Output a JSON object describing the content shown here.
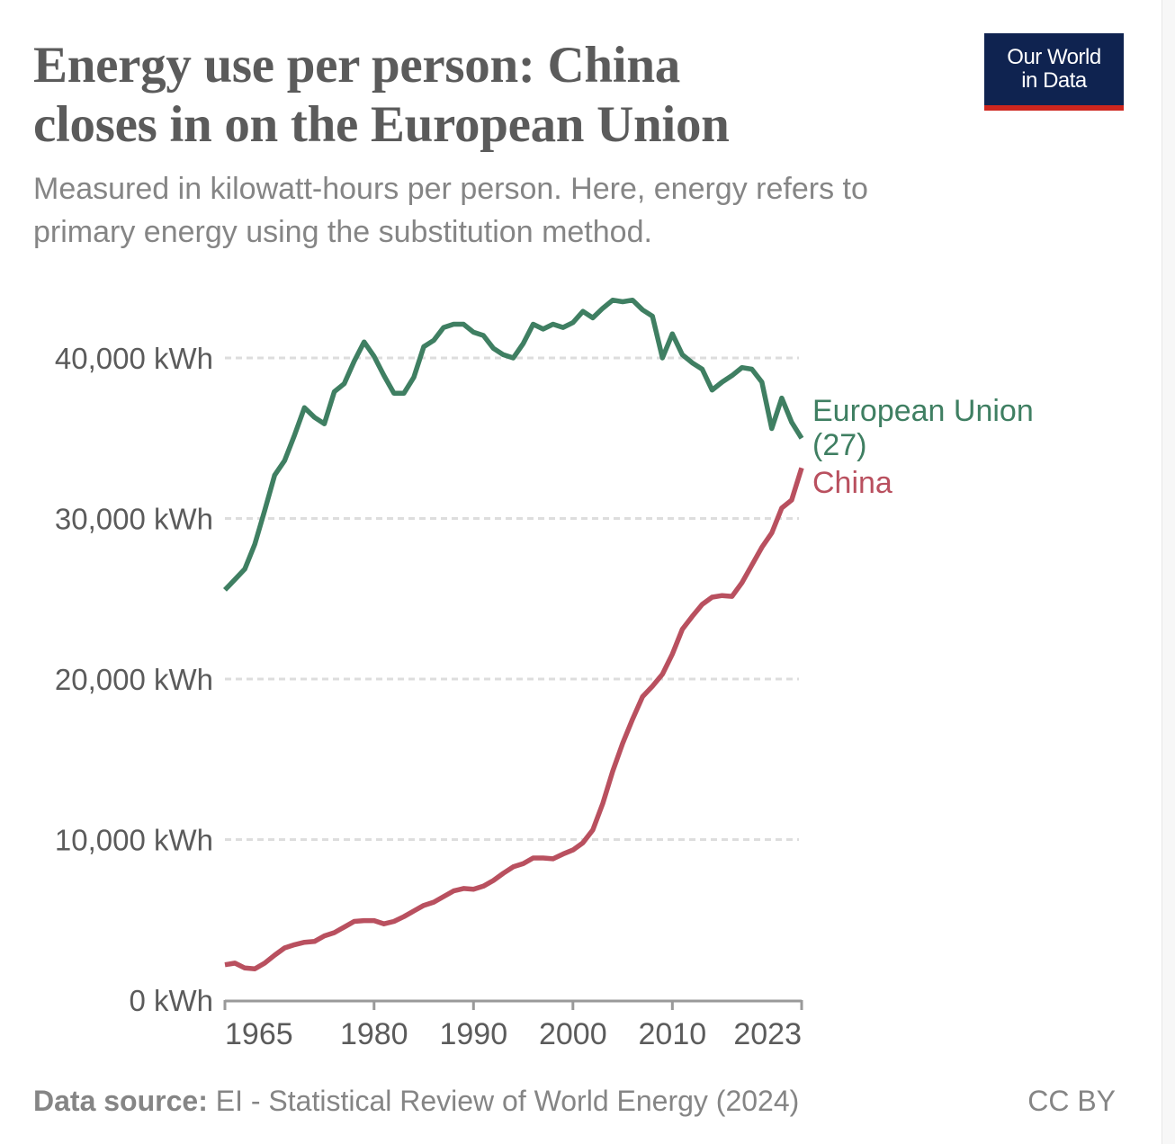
{
  "header": {
    "title_line1": "Energy use per person: China",
    "title_line2": "closes in on the European Union",
    "subtitle_line1": "Measured in kilowatt-hours per person. Here, energy refers to",
    "subtitle_line2": "primary energy using the substitution method."
  },
  "logo": {
    "line1": "Our World",
    "line2": "in Data",
    "bg_color": "#0f2350",
    "accent_color": "#ce261e"
  },
  "footer": {
    "source_label": "Data source:",
    "source_text": " EI - Statistical Review of World Energy (2024)",
    "license": "CC BY"
  },
  "chart_data": {
    "type": "line",
    "title": "Energy use per person: China closes in on the European Union",
    "subtitle": "Measured in kilowatt-hours per person. Here, energy refers to primary energy using the substitution method.",
    "xlabel": "",
    "ylabel": "",
    "xlim": [
      1965,
      2023
    ],
    "ylim": [
      0,
      40000
    ],
    "grid": "horizontal-dashed",
    "legend": "inline-right",
    "x_ticks": [
      1965,
      1980,
      1990,
      2000,
      2010,
      2023
    ],
    "x_tick_labels": [
      "1965",
      "1980",
      "1990",
      "2000",
      "2010",
      "2023"
    ],
    "y_ticks": [
      0,
      10000,
      20000,
      30000,
      40000
    ],
    "y_tick_labels": [
      "0 kWh",
      "10,000 kWh",
      "20,000 kWh",
      "30,000 kWh",
      "40,000 kWh"
    ],
    "x": [
      1965,
      1966,
      1967,
      1968,
      1969,
      1970,
      1971,
      1972,
      1973,
      1974,
      1975,
      1976,
      1977,
      1978,
      1979,
      1980,
      1981,
      1982,
      1983,
      1984,
      1985,
      1986,
      1987,
      1988,
      1989,
      1990,
      1991,
      1992,
      1993,
      1994,
      1995,
      1996,
      1997,
      1998,
      1999,
      2000,
      2001,
      2002,
      2003,
      2004,
      2005,
      2006,
      2007,
      2008,
      2009,
      2010,
      2011,
      2012,
      2013,
      2014,
      2015,
      2016,
      2017,
      2018,
      2019,
      2020,
      2021,
      2022,
      2023
    ],
    "series": [
      {
        "name": "European Union (27)",
        "label_lines": [
          "European Union",
          "(27)"
        ],
        "color": "#3f7f62",
        "values": [
          25550,
          26200,
          26850,
          28400,
          30500,
          32700,
          33600,
          35200,
          36900,
          36300,
          35900,
          37900,
          38400,
          39800,
          41000,
          40100,
          38900,
          37800,
          37800,
          38800,
          40700,
          41100,
          41900,
          42100,
          42100,
          41600,
          41400,
          40600,
          40200,
          40000,
          40900,
          42100,
          41800,
          42100,
          41900,
          42200,
          42900,
          42500,
          43100,
          43600,
          43500,
          43600,
          43000,
          42600,
          40000,
          41500,
          40200,
          39700,
          39300,
          38000,
          38500,
          38900,
          39400,
          39300,
          38500,
          35600,
          37500,
          36000,
          35000
        ]
      },
      {
        "name": "China",
        "label_lines": [
          "China"
        ],
        "color": "#b9505f",
        "values": [
          2200,
          2300,
          2000,
          1950,
          2300,
          2800,
          3250,
          3450,
          3600,
          3650,
          4000,
          4200,
          4550,
          4900,
          4950,
          4950,
          4750,
          4900,
          5200,
          5550,
          5900,
          6100,
          6450,
          6800,
          6950,
          6900,
          7100,
          7450,
          7900,
          8300,
          8500,
          8850,
          8850,
          8800,
          9100,
          9350,
          9800,
          10600,
          12250,
          14250,
          16000,
          17500,
          18900,
          19550,
          20300,
          21550,
          23100,
          23900,
          24650,
          25100,
          25200,
          25150,
          26000,
          27100,
          28200,
          29100,
          30650,
          31150,
          33150
        ]
      }
    ]
  }
}
